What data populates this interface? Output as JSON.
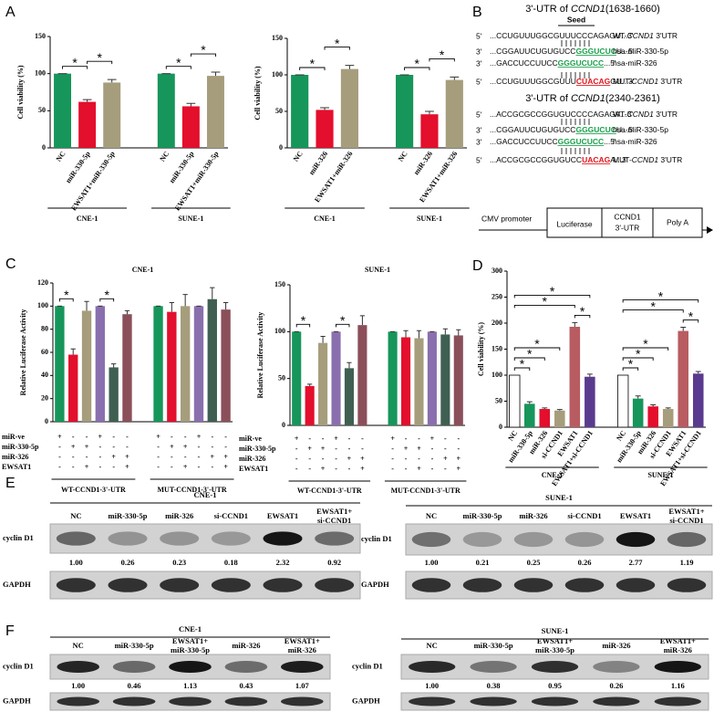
{
  "panel_labels": [
    "A",
    "B",
    "C",
    "D",
    "E",
    "F"
  ],
  "chart_data": [
    {
      "type": "bar",
      "ylabel": "Cell viability (%)",
      "ylim": [
        0,
        150
      ],
      "yticks": [
        0,
        50,
        100,
        150
      ],
      "colors": [
        "#16965a",
        "#e30f2c",
        "#a69d7c"
      ],
      "groups": [
        {
          "name": "CNE-1",
          "categories": [
            "NC",
            "miR-330-5p",
            "EWSAT1+miR-330-5p"
          ],
          "values": [
            100,
            62,
            88
          ],
          "errors": [
            0,
            3,
            4
          ]
        },
        {
          "name": "SUNE-1",
          "categories": [
            "NC",
            "miR-330-5p",
            "EWSAT1+miR-330-5p"
          ],
          "values": [
            100,
            56,
            97
          ],
          "errors": [
            0,
            4,
            5
          ]
        }
      ],
      "significance": [
        "*",
        "*",
        "*",
        "*"
      ]
    },
    {
      "type": "bar",
      "ylabel": "Cell viability (%)",
      "ylim": [
        0,
        150
      ],
      "yticks": [
        0,
        50,
        100,
        150
      ],
      "colors": [
        "#16965a",
        "#e30f2c",
        "#a69d7c"
      ],
      "groups": [
        {
          "name": "CNE-1",
          "categories": [
            "NC",
            "miR-326",
            "EWSAT1+miR-326"
          ],
          "values": [
            100,
            52,
            108
          ],
          "errors": [
            0,
            3,
            5
          ]
        },
        {
          "name": "SUNE-1",
          "categories": [
            "NC",
            "miR-326",
            "EWSAT1+miR-326"
          ],
          "values": [
            100,
            46,
            93
          ],
          "errors": [
            0,
            4,
            4
          ]
        }
      ],
      "significance": [
        "*",
        "*",
        "*",
        "*"
      ]
    },
    {
      "type": "bar",
      "title": "CNE-1",
      "ylabel": "Relative Luciferase Activity",
      "ylim": [
        0,
        120
      ],
      "yticks": [
        0,
        20,
        40,
        60,
        80,
        100,
        120
      ],
      "colors": [
        "#16965a",
        "#e30f2c",
        "#a69d7c",
        "#8a6fae",
        "#3f5f52",
        "#8b4f5a"
      ],
      "groups": [
        {
          "name": "WT-CCND1-3'-UTR",
          "values": [
            100,
            58,
            96,
            100,
            47,
            93
          ],
          "errors": [
            0,
            5,
            8,
            0,
            3,
            3
          ]
        },
        {
          "name": "MUT-CCND1-3'-UTR",
          "values": [
            100,
            95,
            100,
            100,
            106,
            97
          ],
          "errors": [
            0,
            8,
            10,
            0,
            10,
            6
          ]
        }
      ],
      "conditions": [
        {
          "name": "miR-ve",
          "signs": [
            "+",
            "-",
            "-",
            "+",
            "-",
            "-",
            "+",
            "-",
            "-",
            "+",
            "-",
            "-"
          ]
        },
        {
          "name": "miR-330-5p",
          "signs": [
            "-",
            "+",
            "+",
            "-",
            "-",
            "-",
            "-",
            "+",
            "+",
            "-",
            "-",
            "-"
          ]
        },
        {
          "name": "miR-326",
          "signs": [
            "-",
            "-",
            "-",
            "-",
            "+",
            "+",
            "-",
            "-",
            "-",
            "-",
            "+",
            "+"
          ]
        },
        {
          "name": "EWSAT1",
          "signs": [
            "-",
            "-",
            "+",
            "-",
            "-",
            "+",
            "-",
            "-",
            "+",
            "-",
            "-",
            "+"
          ]
        }
      ],
      "significance": [
        "*",
        "*"
      ]
    },
    {
      "type": "bar",
      "title": "SUNE-1",
      "ylabel": "Relative Luciferase Activity",
      "ylim": [
        0,
        150
      ],
      "yticks": [
        0,
        50,
        100,
        150
      ],
      "colors": [
        "#16965a",
        "#e30f2c",
        "#a69d7c",
        "#8a6fae",
        "#3f5f52",
        "#8b4f5a"
      ],
      "groups": [
        {
          "name": "WT-CCND1-3'-UTR",
          "values": [
            100,
            42,
            88,
            100,
            61,
            107
          ],
          "errors": [
            0,
            2,
            7,
            0,
            6,
            10
          ]
        },
        {
          "name": "MUT-CCND1-3'-UTR",
          "values": [
            100,
            94,
            93,
            100,
            97,
            96
          ],
          "errors": [
            0,
            7,
            8,
            0,
            6,
            6
          ]
        }
      ],
      "conditions": [
        {
          "name": "miR-ve",
          "signs": [
            "+",
            "-",
            "-",
            "+",
            "-",
            "-",
            "+",
            "-",
            "-",
            "+",
            "-",
            "-"
          ]
        },
        {
          "name": "miR-330-5p",
          "signs": [
            "-",
            "+",
            "+",
            "-",
            "-",
            "-",
            "-",
            "+",
            "+",
            "-",
            "-",
            "-"
          ]
        },
        {
          "name": "miR-326",
          "signs": [
            "-",
            "-",
            "-",
            "-",
            "+",
            "+",
            "-",
            "-",
            "-",
            "-",
            "+",
            "+"
          ]
        },
        {
          "name": "EWSAT1",
          "signs": [
            "-",
            "-",
            "+",
            "-",
            "-",
            "+",
            "-",
            "-",
            "+",
            "-",
            "-",
            "+"
          ]
        }
      ],
      "significance": [
        "*",
        "*"
      ]
    },
    {
      "type": "bar",
      "ylabel": "Cell viability (%)",
      "ylim": [
        0,
        300
      ],
      "yticks": [
        0,
        50,
        100,
        150,
        200,
        250,
        300
      ],
      "colors": [
        "#ffffff",
        "#16965a",
        "#e30f2c",
        "#a69d7c",
        "#b85c62",
        "#5a3a8e"
      ],
      "groups": [
        {
          "name": "CNE-1",
          "categories": [
            "NC",
            "miR-330-5p",
            "miR-326",
            "si-CCND1",
            "EWSAT1",
            "EWSAT1+si-CCND1"
          ],
          "values": [
            100,
            45,
            35,
            32,
            193,
            97
          ],
          "errors": [
            0,
            4,
            2,
            2,
            8,
            5
          ]
        },
        {
          "name": "SUNE-1",
          "categories": [
            "NC",
            "miR-330-5p",
            "miR-326",
            "si-CCND1",
            "EWSAT1",
            "EWSAT1+si-CCND1"
          ],
          "values": [
            100,
            55,
            40,
            35,
            185,
            103
          ],
          "errors": [
            0,
            5,
            3,
            2,
            7,
            4
          ]
        }
      ],
      "significance": [
        "*",
        "*",
        "*",
        "*",
        "*",
        "*",
        "*",
        "*",
        "*",
        "*",
        "*",
        "*"
      ]
    }
  ],
  "utr_sites": [
    {
      "title": [
        {
          "text": "3'-UTR of "
        },
        {
          "text": "CCND1",
          "italic": true
        },
        {
          "text": "(1638-1660)"
        }
      ],
      "seed": "Seed",
      "rows": [
        {
          "prime": "5'",
          "segments": [
            {
              "text": "...CCUGUUUGGCGUUUCCCAGAGU...3'"
            }
          ],
          "label": [
            {
              "text": "WT-"
            },
            {
              "text": "CCND1",
              "italic": true
            },
            {
              "text": " 3'UTR"
            }
          ]
        },
        {
          "prime": "3'",
          "segments": [
            {
              "text": "...CGGAUUCUGUGUCC"
            },
            {
              "text": "GGGUCUC",
              "color": "#19a04a"
            },
            {
              "text": "U...5'"
            }
          ],
          "label": [
            {
              "text": "hsa-miR-330-5p"
            }
          ]
        },
        {
          "prime": "3'",
          "segments": [
            {
              "text": "...GACCUCCUUCC"
            },
            {
              "text": "GGGUCUCC",
              "color": "#19a04a"
            },
            {
              "text": "...5'"
            }
          ],
          "label": [
            {
              "text": "hsa-miR-326"
            }
          ]
        },
        {
          "prime": "5'",
          "segments": [
            {
              "text": "...CCUGUUUGGCGUUU"
            },
            {
              "text": "CUACAG",
              "color": "#e3141c"
            },
            {
              "text": "GU...3'"
            }
          ],
          "label": [
            {
              "text": "MUT-"
            },
            {
              "text": "CCND1",
              "italic": true
            },
            {
              "text": " 3'UTR"
            }
          ]
        }
      ]
    },
    {
      "title": [
        {
          "text": "3'-UTR of "
        },
        {
          "text": "CCND1",
          "italic": true
        },
        {
          "text": "(2340-2361)"
        }
      ],
      "rows": [
        {
          "prime": "5'",
          "segments": [
            {
              "text": "...ACCGCGCCGGUGUCCCCAGAGA...3'"
            }
          ],
          "label": [
            {
              "text": "WT-"
            },
            {
              "text": "CCND1",
              "italic": true
            },
            {
              "text": " 3'UTR"
            }
          ]
        },
        {
          "prime": "3'",
          "segments": [
            {
              "text": "...CGGAUUCUGUGUCC"
            },
            {
              "text": "GGGUCUC",
              "color": "#19a04a"
            },
            {
              "text": "U...5'"
            }
          ],
          "label": [
            {
              "text": "hsa-miR-330-5p"
            }
          ]
        },
        {
          "prime": "3'",
          "segments": [
            {
              "text": "...GACCUCCUUCC"
            },
            {
              "text": "GGGUCUCC",
              "color": "#19a04a"
            },
            {
              "text": "...5'"
            }
          ],
          "label": [
            {
              "text": "hsa-miR-326"
            }
          ]
        },
        {
          "prime": "5'",
          "segments": [
            {
              "text": "...ACCGCGCCGGUGUCC"
            },
            {
              "text": "UACAG",
              "color": "#e3141c"
            },
            {
              "text": "A...3'"
            }
          ],
          "label": [
            {
              "text": "MUT-"
            },
            {
              "text": "CCND1",
              "italic": true
            },
            {
              "text": " 3'UTR"
            }
          ]
        }
      ]
    }
  ],
  "construct": {
    "promoter": "CMV promoter",
    "luciferase": "Luciferase",
    "utr": [
      "CCND1",
      "3'-UTR"
    ],
    "polya": "Poly A"
  },
  "western_blots": [
    {
      "cell_line": "CNE-1",
      "target": "cyclin D1",
      "loading": "GAPDH",
      "lanes": [
        [
          "NC"
        ],
        [
          "miR-330-5p"
        ],
        [
          "miR-326"
        ],
        [
          "si-CCND1"
        ],
        [
          "EWSAT1"
        ],
        [
          "EWSAT1+",
          "si-CCND1"
        ]
      ],
      "values": [
        "1.00",
        "0.26",
        "0.23",
        "0.18",
        "2.32",
        "0.92"
      ]
    },
    {
      "cell_line": "SUNE-1",
      "target": "cyclin D1",
      "loading": "GAPDH",
      "lanes": [
        [
          "NC"
        ],
        [
          "miR-330-5p"
        ],
        [
          "miR-326"
        ],
        [
          "si-CCND1"
        ],
        [
          "EWSAT1"
        ],
        [
          "EWSAT1+",
          "si-CCND1"
        ]
      ],
      "values": [
        "1.00",
        "0.21",
        "0.25",
        "0.26",
        "2.77",
        "1.19"
      ]
    },
    {
      "cell_line": "CNE-1",
      "target": "cyclin D1",
      "loading": "GAPDH",
      "lanes": [
        [
          "NC"
        ],
        [
          "miR-330-5p"
        ],
        [
          "EWSAT1+",
          "miR-330-5p"
        ],
        [
          "miR-326"
        ],
        [
          "EWSAT1+",
          "miR-326"
        ]
      ],
      "values": [
        "1.00",
        "0.46",
        "1.13",
        "0.43",
        "1.07"
      ]
    },
    {
      "cell_line": "SUNE-1",
      "target": "cyclin D1",
      "loading": "GAPDH",
      "lanes": [
        [
          "NC"
        ],
        [
          "miR-330-5p"
        ],
        [
          "EWSAT1+",
          "miR-330-5p"
        ],
        [
          "miR-326"
        ],
        [
          "EWSAT1+",
          "miR-326"
        ]
      ],
      "values": [
        "1.00",
        "0.38",
        "0.95",
        "0.26",
        "1.16"
      ]
    }
  ]
}
